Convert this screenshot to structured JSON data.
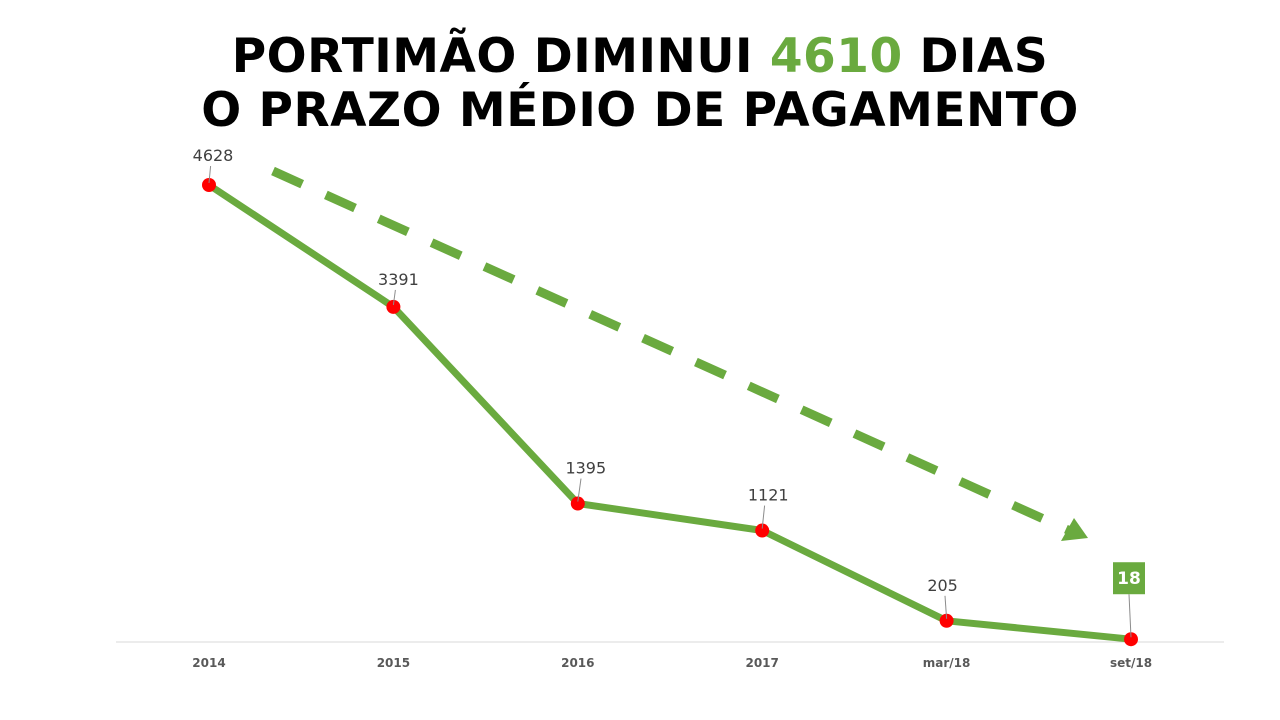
{
  "title": {
    "line1_before": "PORTIMÃO DIMINUI ",
    "line1_highlight": "4610",
    "line1_after": " DIAS",
    "line2": "O PRAZO MÉDIO DE PAGAMENTO"
  },
  "colors": {
    "line": "#6aaa3f",
    "marker": "#ff0000",
    "highlight": "#6aaa3f",
    "axis": "#d9d9d9"
  },
  "chart_data": {
    "type": "line",
    "title": "PORTIMÃO DIMINUI 4610 DIAS O PRAZO MÉDIO DE PAGAMENTO",
    "categories": [
      "2014",
      "2015",
      "2016",
      "2017",
      "mar/18",
      "set/18"
    ],
    "series": [
      {
        "values": [
          4628,
          3391,
          1395,
          1121,
          205,
          18
        ]
      }
    ],
    "data_labels": [
      "4628",
      "3391",
      "1395",
      "1121",
      "205",
      "18"
    ],
    "highlighted_label": "18",
    "ylim": [
      0,
      4628
    ],
    "grid": false,
    "legend": "none",
    "annotation": "dashed-downward-trend-arrow"
  }
}
